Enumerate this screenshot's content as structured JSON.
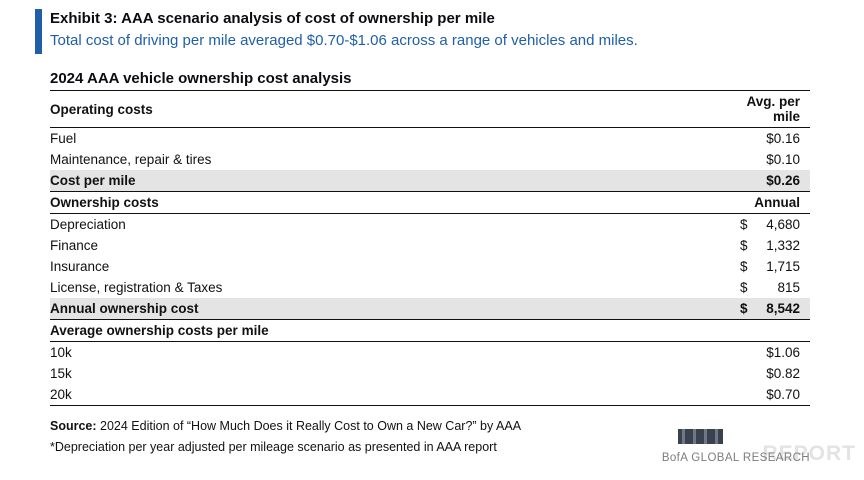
{
  "page": {
    "accent_color": "#1f5fa8",
    "highlight_color": "#e4e4e4"
  },
  "header": {
    "exhibit_title": "Exhibit 3: AAA scenario analysis of cost of ownership per mile",
    "subtitle": "Total cost of driving per mile averaged $0.70-$1.06 across a range of vehicles and miles."
  },
  "table": {
    "title": "2024 AAA vehicle ownership cost analysis",
    "rows": [
      {
        "label": "Operating costs",
        "dollar": "",
        "value": "Avg. per mile",
        "type": "section"
      },
      {
        "label": "Fuel",
        "dollar": "",
        "value": "$0.16",
        "type": "normal"
      },
      {
        "label": "Maintenance, repair & tires",
        "dollar": "",
        "value": "$0.10",
        "type": "normal"
      },
      {
        "label": "Cost per mile",
        "dollar": "",
        "value": "$0.26",
        "type": "total"
      },
      {
        "label": "Ownership costs",
        "dollar": "",
        "value": "Annual",
        "type": "section"
      },
      {
        "label": "Depreciation",
        "dollar": "$",
        "value": "4,680",
        "type": "normal"
      },
      {
        "label": "Finance",
        "dollar": "$",
        "value": "1,332",
        "type": "normal"
      },
      {
        "label": "Insurance",
        "dollar": "$",
        "value": "1,715",
        "type": "normal"
      },
      {
        "label": "License, registration & Taxes",
        "dollar": "$",
        "value": "815",
        "type": "normal"
      },
      {
        "label": "Annual ownership cost",
        "dollar": "$",
        "value": "8,542",
        "type": "total"
      },
      {
        "label": "Average ownership costs per mile",
        "dollar": "",
        "value": "",
        "type": "section"
      },
      {
        "label": "10k",
        "dollar": "",
        "value": "$1.06",
        "type": "normal"
      },
      {
        "label": "15k",
        "dollar": "",
        "value": "$0.82",
        "type": "normal"
      },
      {
        "label": "20k",
        "dollar": "",
        "value": "$0.70",
        "type": "normal"
      }
    ]
  },
  "footer": {
    "source_label": "Source:",
    "source_text": " 2024 Edition of “How Much Does it Really Cost to Own a New Car?” by AAA",
    "note": "*Depreciation per year adjusted per mileage scenario as presented in AAA report",
    "brand": "BofA GLOBAL RESEARCH",
    "watermark": "REPORT"
  }
}
